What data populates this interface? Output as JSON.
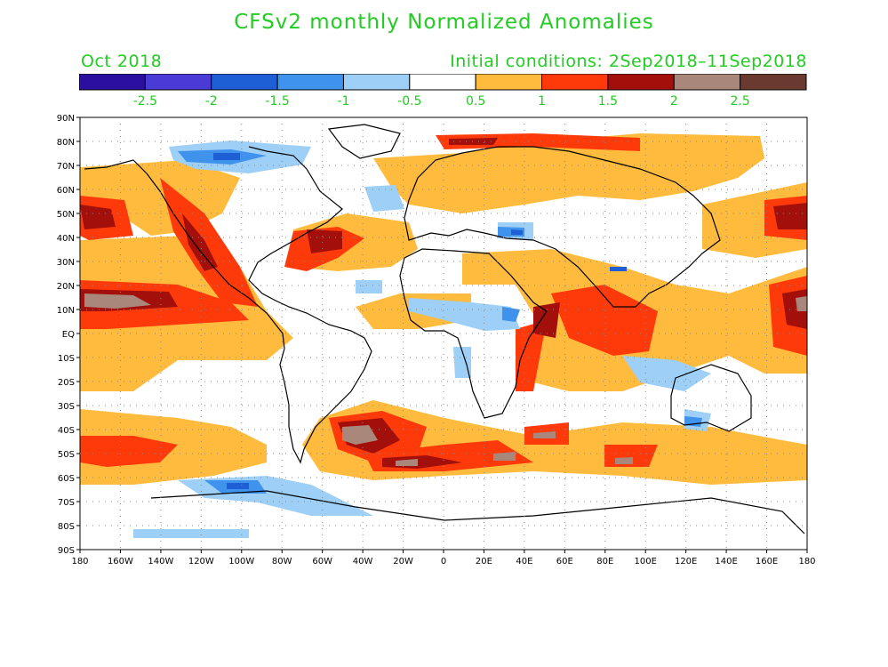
{
  "title": "CFSv2 monthly Normalized Anomalies",
  "valid_month": "Oct 2018",
  "initial_conditions": "Initial conditions: 2Sep2018–11Sep2018",
  "text_color": "#22cc22",
  "colorbar": {
    "colors": [
      "#2a0fa0",
      "#4b3bd6",
      "#1f5fd6",
      "#3f93ec",
      "#9dcff7",
      "#ffffff",
      "#ffbb3d",
      "#ff3a0a",
      "#a30f0b",
      "#a9877a",
      "#6a3a30"
    ],
    "labels": [
      "-2.5",
      "-2",
      "-1.5",
      "-1",
      "-0.5",
      "0.5",
      "1",
      "1.5",
      "2",
      "2.5"
    ]
  },
  "map": {
    "lat_labels": [
      "90N",
      "80N",
      "70N",
      "60N",
      "50N",
      "40N",
      "30N",
      "20N",
      "10N",
      "EQ",
      "10S",
      "20S",
      "30S",
      "40S",
      "50S",
      "60S",
      "70S",
      "80S",
      "90S"
    ],
    "lon_labels": [
      "180",
      "160W",
      "140W",
      "120W",
      "100W",
      "80W",
      "60W",
      "40W",
      "20W",
      "0",
      "20E",
      "40E",
      "60E",
      "80E",
      "100E",
      "120E",
      "140E",
      "160E",
      "180"
    ],
    "grid": "dotted"
  }
}
